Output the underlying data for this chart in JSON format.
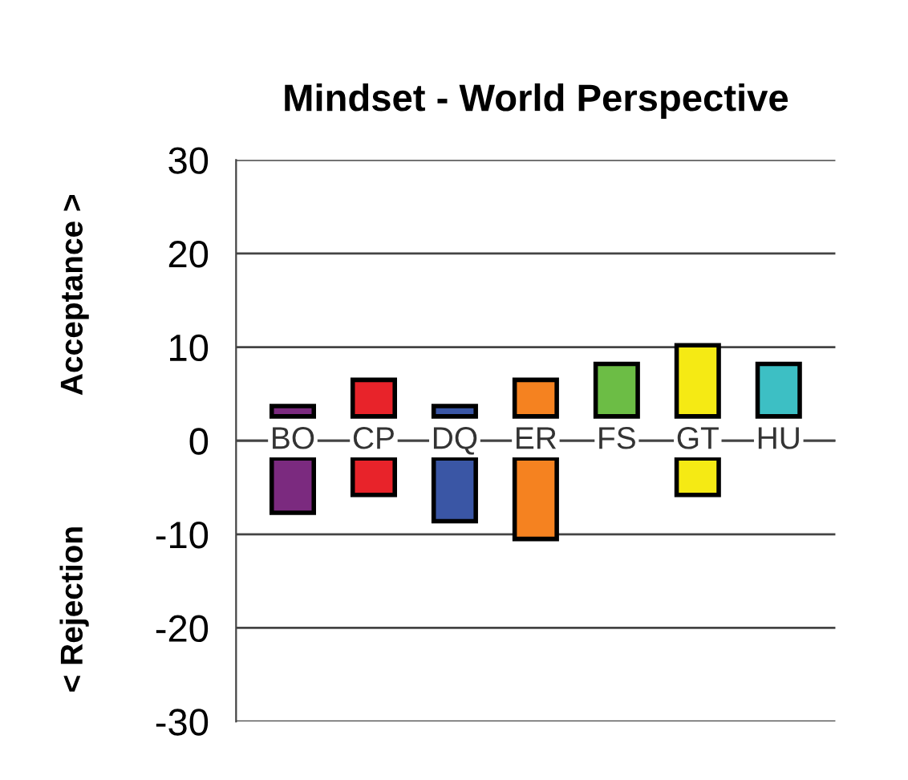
{
  "chart_data": {
    "type": "bar",
    "title": "Mindset - World Perspective",
    "categories": [
      "BO",
      "CP",
      "DQ",
      "ER",
      "FS",
      "GT",
      "HU"
    ],
    "series": [
      {
        "colors": [
          "#7b2a7f",
          "#e8232a",
          "#3a56a5",
          "#f58220",
          "#6cbd45",
          "#f5ea14",
          "#3dbfc4"
        ],
        "base": [
          2.6,
          2.6,
          2.6,
          2.6,
          2.6,
          2.6,
          2.6
        ],
        "values": [
          1.1,
          3.9,
          1.1,
          3.9,
          5.6,
          7.6,
          5.6
        ]
      },
      {
        "colors": [
          "#7b2a7f",
          "#e8232a",
          "#3a56a5",
          "#f58220",
          "#6cbd45",
          "#f5ea14",
          "#3dbfc4"
        ],
        "base": [
          -1.9,
          -1.9,
          -1.9,
          -1.9,
          null,
          -1.9,
          null
        ],
        "values": [
          -5.8,
          -3.9,
          -6.7,
          -8.6,
          null,
          -3.9,
          null
        ]
      }
    ],
    "annotations": [
      "Acceptance >",
      "< Rejection"
    ],
    "ylim": [
      -30,
      30
    ],
    "yticks": [
      -30,
      -20,
      -10,
      0,
      10,
      20,
      30
    ],
    "grid": "y",
    "legend": false
  }
}
